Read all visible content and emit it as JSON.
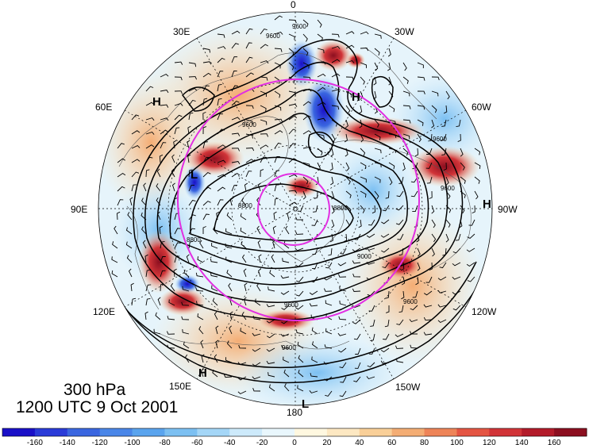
{
  "caption": {
    "level": "300 hPa",
    "time": "1200 UTC 9 Oct 2001"
  },
  "longitude_labels": [
    "0",
    "30W",
    "60W",
    "90W",
    "120W",
    "150W",
    "180",
    "150E",
    "120E",
    "90E",
    "60E",
    "30E"
  ],
  "contour_labels": [
    "9600",
    "9600",
    "9600",
    "8800",
    "9600",
    "9600",
    "9600",
    "8800",
    "9600",
    "9000",
    "9600",
    "8800"
  ],
  "pressure_centers": [
    "H",
    "H",
    "L",
    "H",
    "L",
    "H"
  ],
  "colorbar": {
    "ticks": [
      "-160",
      "-140",
      "-120",
      "-100",
      "-80",
      "-60",
      "-40",
      "-20",
      "0",
      "20",
      "40",
      "60",
      "80",
      "100",
      "120",
      "140",
      "160"
    ],
    "colors": [
      "#1a10c8",
      "#2a3bd8",
      "#3a66e0",
      "#4a86e8",
      "#5aa4ee",
      "#7cc0f2",
      "#a4d6f7",
      "#cdeafb",
      "#e9f7fd",
      "#fff8e0",
      "#fde8c2",
      "#f9cf98",
      "#f4ad74",
      "#ee8458",
      "#e45543",
      "#d13438",
      "#b31b2a",
      "#8c0f20"
    ]
  },
  "colors": {
    "trough_line": "#e22ee2",
    "contour": "#000000"
  }
}
